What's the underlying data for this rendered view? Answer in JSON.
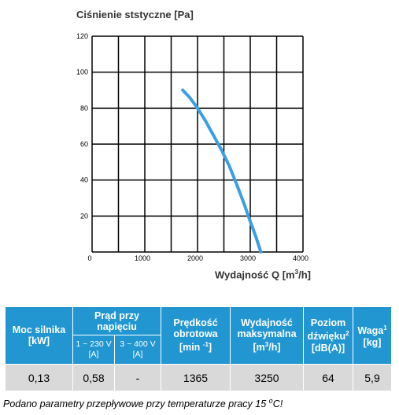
{
  "chart_data": {
    "type": "line",
    "title": "Ciśnienie ststyczne [Pa]",
    "xlabel": "Wydajność Q [m3/h]",
    "xlabel_prefix": "Wydajność Q [m",
    "xlabel_sup": "3",
    "xlabel_suffix": "/h]",
    "ylabel": "",
    "xlim": [
      0,
      4000
    ],
    "ylim": [
      0,
      120
    ],
    "x_ticks": [
      0,
      1000,
      2000,
      3000,
      4000
    ],
    "y_ticks": [
      20,
      40,
      60,
      80,
      100,
      120
    ],
    "grid": true,
    "line_color": "#3aa0e6",
    "series": [
      {
        "x": [
          1720,
          1850,
          2000,
          2150,
          2300,
          2450,
          2600,
          2750,
          2880,
          3000,
          3100,
          3200
        ],
        "y": [
          90,
          86,
          80,
          73,
          65,
          57,
          48,
          37,
          27,
          17,
          9,
          0
        ]
      }
    ]
  },
  "table": {
    "headers": {
      "moc": [
        "Moc silnika",
        "[kW]"
      ],
      "prad": [
        "Prąd przy",
        "napięciu"
      ],
      "prad_230": [
        "1 ~ 230 V",
        "[A]"
      ],
      "prad_400": [
        "3 ~ 400 V",
        "[A]"
      ],
      "predkosc": [
        "Prędkość",
        "obrotowa",
        "[min -1]"
      ],
      "wydajnosc": [
        "Wydajność",
        "maksymalna",
        "[m3/h]"
      ],
      "poziom": [
        "Poziom",
        "dźwięku2",
        "[dB(A)]"
      ],
      "waga": [
        "Waga1",
        "[kg]"
      ]
    },
    "row": [
      "0,13",
      "0,58",
      "-",
      "1365",
      "3250",
      "64",
      "5,9"
    ]
  },
  "footnote": "Podano parametry przepływowe przy temperaturze pracy 15 oC!"
}
